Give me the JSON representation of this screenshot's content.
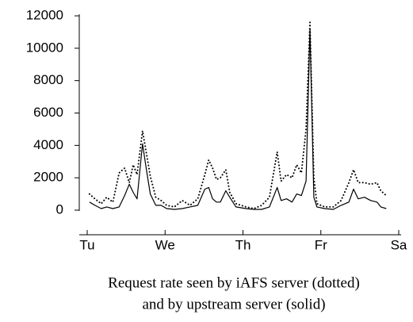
{
  "chart_data": {
    "type": "line",
    "title": "Request rate seen by iAFS server (dotted)",
    "subtitle": "and by upstream server (solid)",
    "x": [
      0.03,
      0.1,
      0.18,
      0.25,
      0.33,
      0.41,
      0.48,
      0.54,
      0.59,
      0.64,
      0.71,
      0.76,
      0.81,
      0.88,
      0.95,
      1.02,
      1.12,
      1.22,
      1.32,
      1.42,
      1.51,
      1.56,
      1.61,
      1.66,
      1.71,
      1.78,
      1.83,
      1.91,
      2.04,
      2.14,
      2.24,
      2.34,
      2.44,
      2.49,
      2.56,
      2.63,
      2.69,
      2.75,
      2.81,
      2.86,
      2.91,
      2.95,
      3.05,
      3.16,
      3.26,
      3.36,
      3.42,
      3.48,
      3.56,
      3.64,
      3.72,
      3.77,
      3.84
    ],
    "series": [
      {
        "color": "#000000",
        "style": "dotted",
        "values": [
          1000,
          700,
          400,
          800,
          500,
          2300,
          2600,
          1700,
          2800,
          2200,
          4900,
          3500,
          2100,
          800,
          600,
          300,
          200,
          600,
          300,
          700,
          2200,
          3100,
          2600,
          1900,
          2000,
          2500,
          1100,
          400,
          200,
          100,
          300,
          800,
          3600,
          1800,
          2200,
          2000,
          2800,
          2300,
          5000,
          11600,
          2000,
          400,
          200,
          200,
          600,
          1700,
          2500,
          1700,
          1700,
          1600,
          1700,
          1200,
          900
        ]
      },
      {
        "color": "#000000",
        "style": "solid",
        "values": [
          500,
          300,
          100,
          200,
          100,
          200,
          900,
          1600,
          1100,
          700,
          4100,
          2500,
          1000,
          300,
          300,
          100,
          50,
          100,
          200,
          300,
          1300,
          1400,
          700,
          500,
          500,
          1200,
          800,
          200,
          100,
          50,
          50,
          200,
          1400,
          600,
          700,
          500,
          1000,
          900,
          1800,
          11200,
          800,
          200,
          100,
          50,
          300,
          500,
          1300,
          700,
          800,
          600,
          500,
          200,
          100
        ]
      }
    ],
    "xlim": [
      0,
      4
    ],
    "xticks": [
      {
        "value": 0,
        "label": "Tu"
      },
      {
        "value": 1,
        "label": "We"
      },
      {
        "value": 2,
        "label": "Th"
      },
      {
        "value": 3,
        "label": "Fr"
      },
      {
        "value": 4,
        "label": "Sa"
      }
    ],
    "ylim": [
      0,
      12000
    ],
    "yticks": [
      0,
      2000,
      4000,
      6000,
      8000,
      10000,
      12000
    ]
  }
}
